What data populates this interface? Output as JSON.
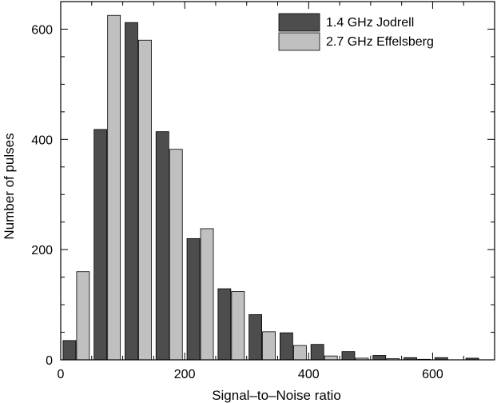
{
  "chart_data": {
    "type": "bar",
    "xlabel": "Signal–to–Noise ratio",
    "ylabel": "Number of pulses",
    "xlim": [
      0,
      700
    ],
    "ylim": [
      0,
      650
    ],
    "grid": false,
    "legend_position": "top-right",
    "x_ticks": [
      0,
      200,
      400,
      600
    ],
    "y_ticks": [
      0,
      200,
      400,
      600
    ],
    "bin_centers": [
      25,
      75,
      125,
      175,
      225,
      275,
      325,
      375,
      425,
      475,
      525,
      575,
      625,
      675
    ],
    "series": [
      {
        "name": "1.4 GHz Jodrell",
        "color": "#4d4d4d",
        "values": [
          35,
          418,
          612,
          414,
          220,
          129,
          82,
          49,
          28,
          15,
          8,
          4,
          4,
          3
        ]
      },
      {
        "name": "2.7 GHz Effelsberg",
        "color": "#c0c0c0",
        "values": [
          160,
          625,
          580,
          382,
          238,
          124,
          51,
          26,
          7,
          3,
          2,
          1,
          0,
          0
        ]
      }
    ]
  }
}
